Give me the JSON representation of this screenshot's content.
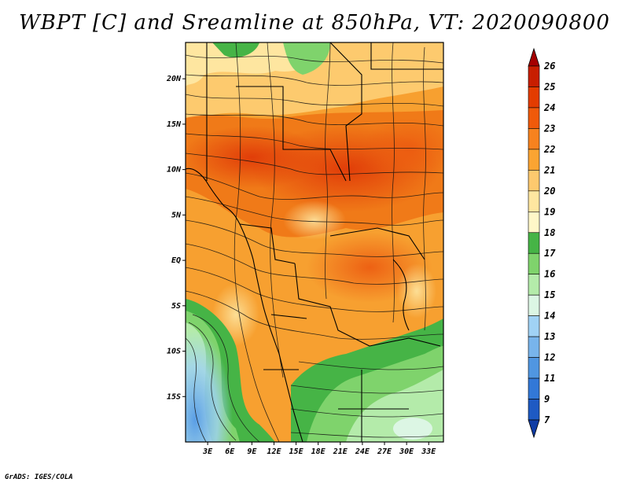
{
  "title": "WBPT [C] and Sreamline at 850hPa, VT: 2020090800",
  "footer": "GrADS: IGES/COLA",
  "map": {
    "lon_range": [
      0,
      35
    ],
    "lat_range": [
      -20,
      24
    ],
    "x_ticks": [
      "3E",
      "6E",
      "9E",
      "12E",
      "15E",
      "18E",
      "21E",
      "24E",
      "27E",
      "30E",
      "33E"
    ],
    "x_tick_values": [
      3,
      6,
      9,
      12,
      15,
      18,
      21,
      24,
      27,
      30,
      33
    ],
    "y_ticks": [
      "20N",
      "15N",
      "10N",
      "5N",
      "EQ",
      "5S",
      "10S",
      "15S"
    ],
    "y_tick_values": [
      20,
      15,
      10,
      5,
      0,
      -5,
      -10,
      -15
    ]
  },
  "colorbar": {
    "labels": [
      "26",
      "25",
      "24",
      "23",
      "22",
      "21",
      "20",
      "19",
      "18",
      "17",
      "16",
      "15",
      "14",
      "13",
      "12",
      "11",
      "9",
      "7"
    ],
    "colors": [
      "#a50000",
      "#c81e00",
      "#e33c00",
      "#f05a0a",
      "#f7821e",
      "#fba432",
      "#fdc96e",
      "#fee6a0",
      "#fff7c8",
      "#46b446",
      "#7fd36c",
      "#b4ebaa",
      "#dcf6e4",
      "#a0d2f5",
      "#78b4eb",
      "#5096e1",
      "#3278d7",
      "#1e5ac3",
      "#0f3ca5"
    ]
  }
}
